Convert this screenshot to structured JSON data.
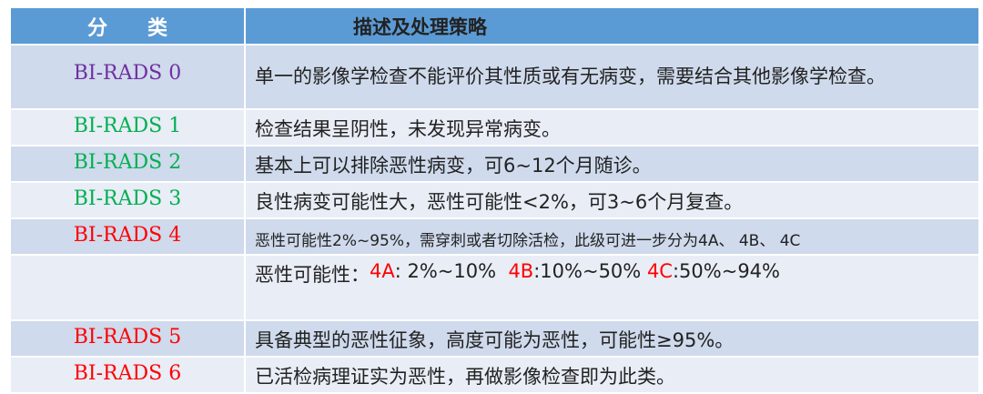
{
  "header": {
    "category": "分　　类",
    "description": "描述及处理策略"
  },
  "colors": {
    "header_bg": "#5b9bd5",
    "purple": "#7030a0",
    "green": "#00b050",
    "red": "#ff0000"
  },
  "rows": [
    {
      "category": "BI-RADS 0",
      "description": "单一的影像学检查不能评价其性质或有无病变，需要结合其他影像学检查。"
    },
    {
      "category": "BI-RADS 1",
      "description": "检查结果呈阴性，未发现异常病变。"
    },
    {
      "category": "BI-RADS 2",
      "description": "基本上可以排除恶性病变，可6~12个月随诊。"
    },
    {
      "category": "BI-RADS 3",
      "description": "良性病变可能性大，恶性可能性<2%，可3~6个月复查。"
    },
    {
      "category": "BI-RADS 4",
      "description": "恶性可能性2%~95%，需穿刺或者切除活检，此级可进一步分为4A、 4B、 4C"
    },
    {
      "category": "BI-RADS 5",
      "description": "具备典型的恶性征象，高度可能为恶性，可能性≥95%。"
    },
    {
      "category": "BI-RADS 6",
      "description": "已活检病理证实为恶性，再做影像检查即为此类。"
    }
  ],
  "subtypes": {
    "prefix": "恶性可能性：",
    "a_label": "4A",
    "a_range": ": 2%~10%",
    "b_label": "4B",
    "b_range": ":10%~50%",
    "c_label": "4C",
    "c_range": ":50%~94%"
  }
}
